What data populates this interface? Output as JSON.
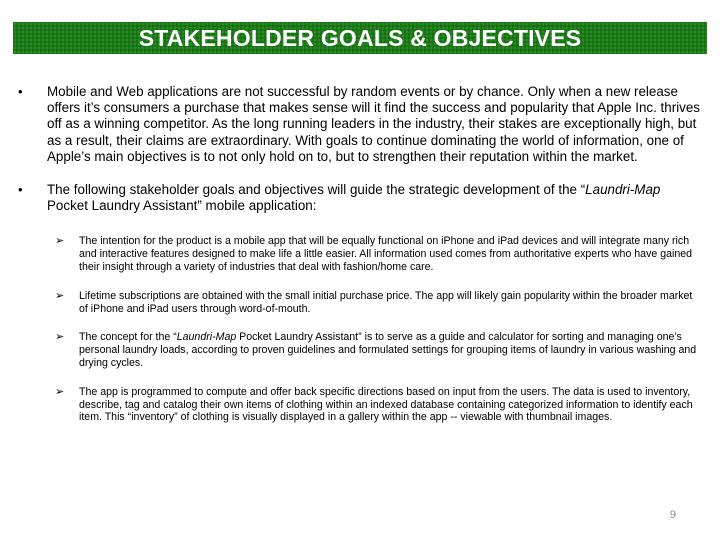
{
  "slide": {
    "title": "STAKEHOLDER GOALS & OBJECTIVES",
    "page_number": "9"
  },
  "bullets": [
    {
      "text": "Mobile and Web applications are not successful by random events or by chance. Only when a new release offers it’s consumers a purchase that makes sense will it find the success and popularity that Apple Inc. thrives off as a winning competitor. As the long running leaders in the industry, their stakes are exceptionally high, but as a result, their claims are extraordinary. With goals to continue dominating the world of information, one of Apple’s main objectives is to not only hold on to, but to strengthen their reputation within the market."
    },
    {
      "text_before": "The following stakeholder goals and objectives will guide the strategic development of the “",
      "text_italic": "Laundri-Map",
      "text_after": " Pocket Laundry Assistant”  mobile application:"
    }
  ],
  "sub_bullets": [
    {
      "text": "The intention for the product is a mobile app that will be equally functional on iPhone and iPad devices and will integrate many rich and interactive features designed to make life a little easier. All information used comes from authoritative experts who have gained their insight through a variety of industries that deal with fashion/home care."
    },
    {
      "text": "Lifetime subscriptions are obtained with the small initial purchase price. The app will likely gain popularity within the broader market of iPhone and iPad users through word-of-mouth."
    },
    {
      "text_before": "The concept for the “",
      "text_italic": "Laundri-Map",
      "text_after": " Pocket Laundry Assistant” is to serve as a guide and calculator for sorting and managing one’s personal laundry loads, according to proven guidelines and formulated settings for grouping items of laundry in various washing and drying cycles."
    },
    {
      "text": "The app is programmed to compute and offer back specific directions based on input from the users. The data is used to inventory, describe, tag and catalog their own items of clothing within an indexed database containing categorized information to identify each item. This “inventory”  of clothing is visually displayed in a gallery within the app -- viewable with thumbnail images."
    }
  ],
  "symbols": {
    "bullet": "•",
    "arrow": "➢"
  },
  "colors": {
    "banner": "#1a7a16",
    "title_text": "#ffffff",
    "page_number": "#888888"
  }
}
